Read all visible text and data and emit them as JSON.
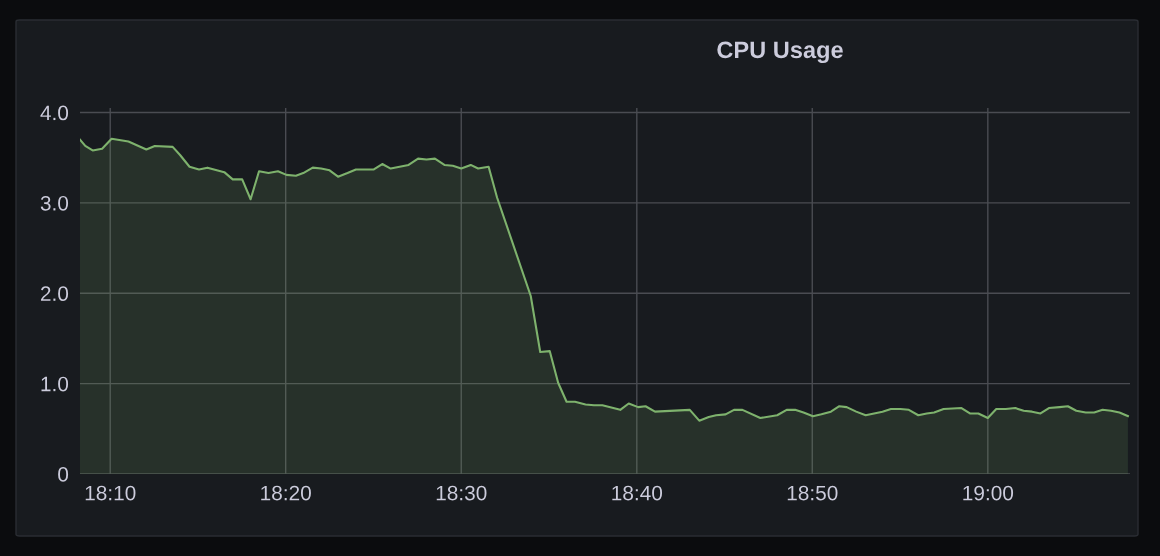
{
  "chart_data": {
    "type": "area",
    "title": "CPU Usage",
    "x": [
      18.138,
      18.143,
      18.15,
      18.159,
      18.168,
      18.184,
      18.201,
      18.209,
      18.226,
      18.233,
      18.242,
      18.251,
      18.259,
      18.275,
      18.283,
      18.292,
      18.3,
      18.308,
      18.317,
      18.326,
      18.334,
      18.343,
      18.35,
      18.359,
      18.367,
      18.375,
      18.383,
      18.392,
      18.4,
      18.417,
      18.425,
      18.433,
      18.45,
      18.459,
      18.467,
      18.475,
      18.484,
      18.492,
      18.5,
      18.509,
      18.516,
      18.526,
      18.534,
      18.566,
      18.575,
      18.584,
      18.592,
      18.6,
      18.608,
      18.618,
      18.626,
      18.634,
      18.651,
      18.659,
      18.668,
      18.675,
      18.684,
      18.717,
      18.726,
      18.735,
      18.742,
      18.751,
      18.759,
      18.767,
      18.784,
      18.8,
      18.809,
      18.817,
      18.825,
      18.834,
      18.842,
      18.851,
      18.859,
      18.866,
      18.875,
      18.884,
      18.9,
      18.908,
      18.917,
      18.925,
      18.934,
      18.942,
      18.949,
      18.958,
      18.975,
      18.983,
      18.991,
      19.0,
      19.008,
      19.017,
      19.026,
      19.034,
      19.042,
      19.05,
      19.058,
      19.068,
      19.076,
      19.084,
      19.093,
      19.101,
      19.109,
      19.117,
      19.125,
      19.133
    ],
    "series": [
      {
        "color": "#7eb26d",
        "values": [
          3.7,
          3.63,
          3.58,
          3.6,
          3.71,
          3.68,
          3.59,
          3.63,
          3.62,
          3.53,
          3.4,
          3.37,
          3.39,
          3.34,
          3.26,
          3.26,
          3.04,
          3.35,
          3.33,
          3.35,
          3.31,
          3.3,
          3.33,
          3.39,
          3.38,
          3.36,
          3.29,
          3.33,
          3.37,
          3.37,
          3.43,
          3.38,
          3.42,
          3.49,
          3.48,
          3.49,
          3.42,
          3.41,
          3.38,
          3.42,
          3.38,
          3.4,
          3.06,
          1.97,
          1.35,
          1.36,
          1.01,
          0.8,
          0.8,
          0.77,
          0.76,
          0.76,
          0.71,
          0.78,
          0.74,
          0.75,
          0.69,
          0.71,
          0.59,
          0.63,
          0.65,
          0.66,
          0.71,
          0.71,
          0.62,
          0.65,
          0.71,
          0.71,
          0.68,
          0.64,
          0.66,
          0.69,
          0.75,
          0.74,
          0.69,
          0.65,
          0.69,
          0.72,
          0.72,
          0.71,
          0.65,
          0.67,
          0.68,
          0.72,
          0.73,
          0.67,
          0.67,
          0.62,
          0.72,
          0.72,
          0.73,
          0.7,
          0.69,
          0.67,
          0.73,
          0.74,
          0.75,
          0.7,
          0.68,
          0.68,
          0.71,
          0.7,
          0.68,
          0.64
        ]
      }
    ],
    "xlim": [
      18.138,
      19.135
    ],
    "ylim": [
      0,
      4.05
    ],
    "xticks": [
      {
        "value": 18.1667,
        "label": "18:10"
      },
      {
        "value": 18.3333,
        "label": "18:20"
      },
      {
        "value": 18.5,
        "label": "18:30"
      },
      {
        "value": 18.6667,
        "label": "18:40"
      },
      {
        "value": 18.8333,
        "label": "18:50"
      },
      {
        "value": 19.0,
        "label": "19:00"
      }
    ],
    "yticks": [
      0,
      {
        "value": 1,
        "label": "1.0"
      },
      {
        "value": 2,
        "label": "2.0"
      },
      {
        "value": 3,
        "label": "3.0"
      },
      {
        "value": 4,
        "label": "4.0"
      }
    ],
    "grid": true,
    "legend": false,
    "marker": "none",
    "line_style": "solid"
  }
}
